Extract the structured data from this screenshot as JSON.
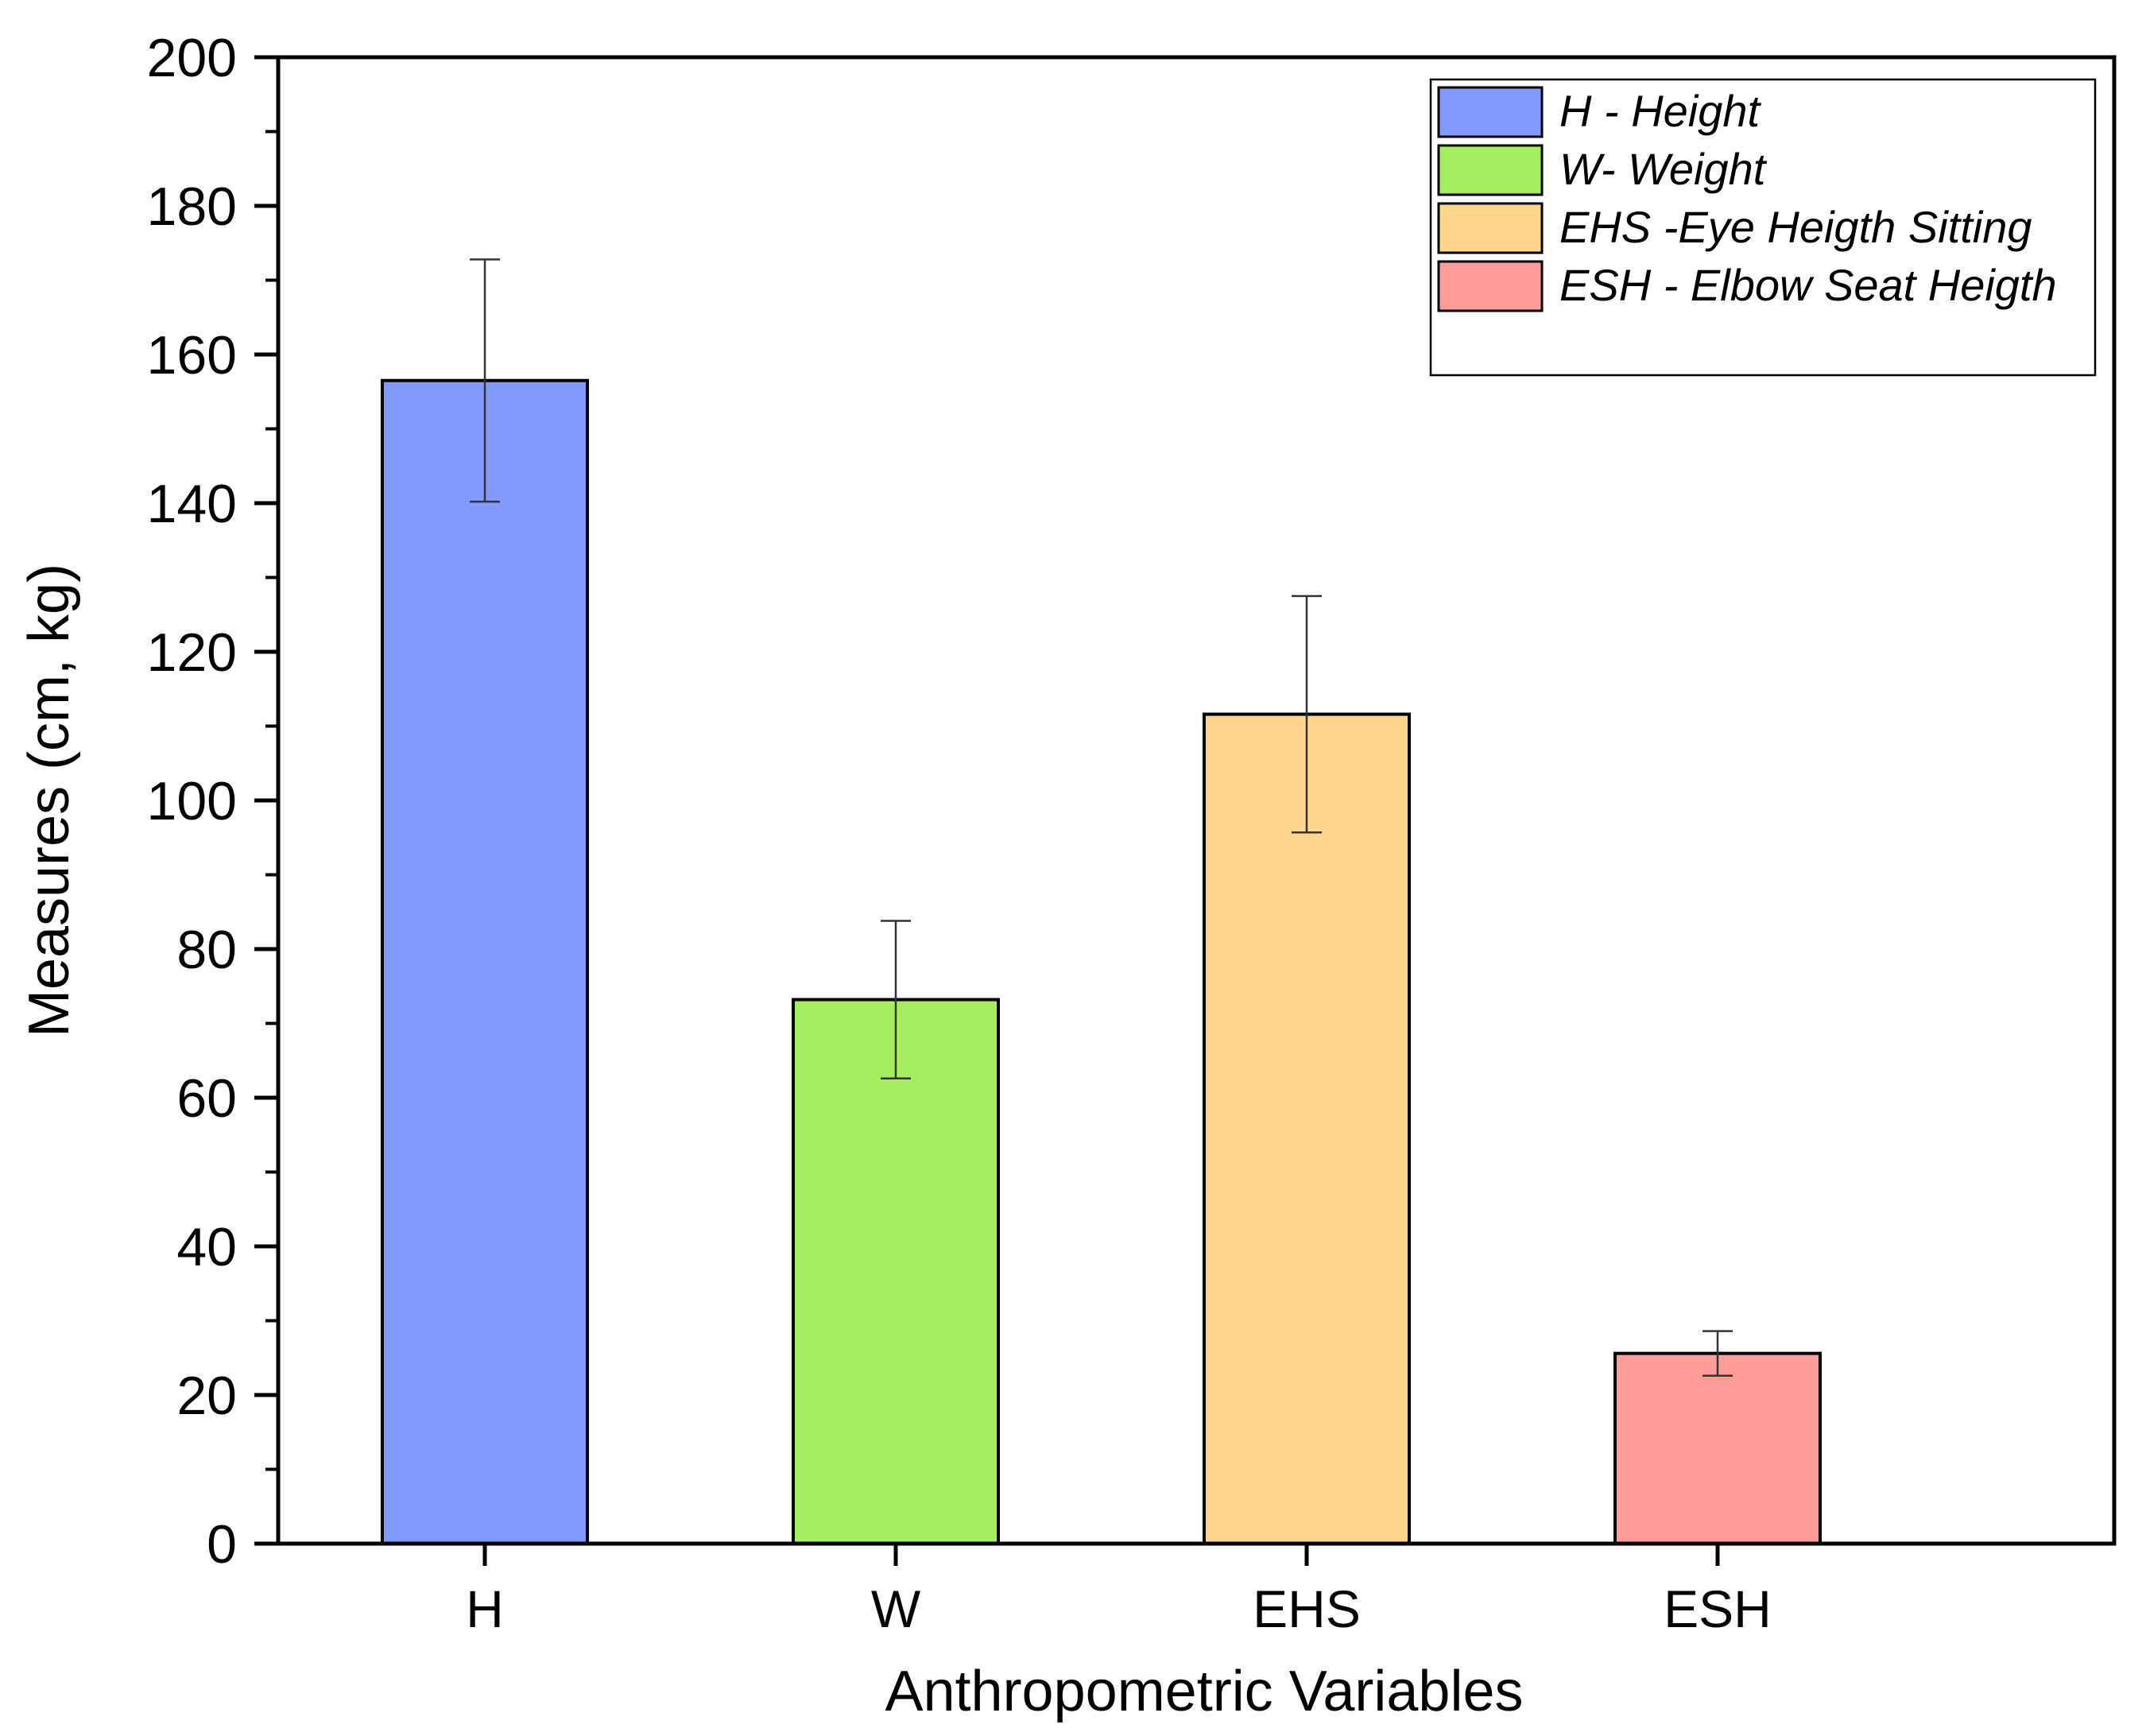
{
  "chart_data": {
    "type": "bar",
    "title": "",
    "xlabel": "Anthropometric Variables",
    "ylabel": "Measures (cm, kg)",
    "ylim": [
      0,
      200
    ],
    "yticks": [
      0,
      20,
      40,
      60,
      80,
      100,
      120,
      140,
      160,
      180,
      200
    ],
    "categories": [
      "H",
      "W",
      "EHS",
      "ESH"
    ],
    "values": [
      156.5,
      73.2,
      111.6,
      25.6
    ],
    "errors": [
      16.3,
      10.6,
      15.9,
      3.0
    ],
    "colors": [
      "#8299FF",
      "#A6EE5F",
      "#FFD68E",
      "#FF9D9B"
    ],
    "legend": {
      "position": "top-right",
      "entries": [
        "H - Height",
        "W- Weight",
        "EHS -Eye Heigth Sitting",
        "ESH - Elbow Seat Heigth"
      ]
    },
    "grid": false
  }
}
